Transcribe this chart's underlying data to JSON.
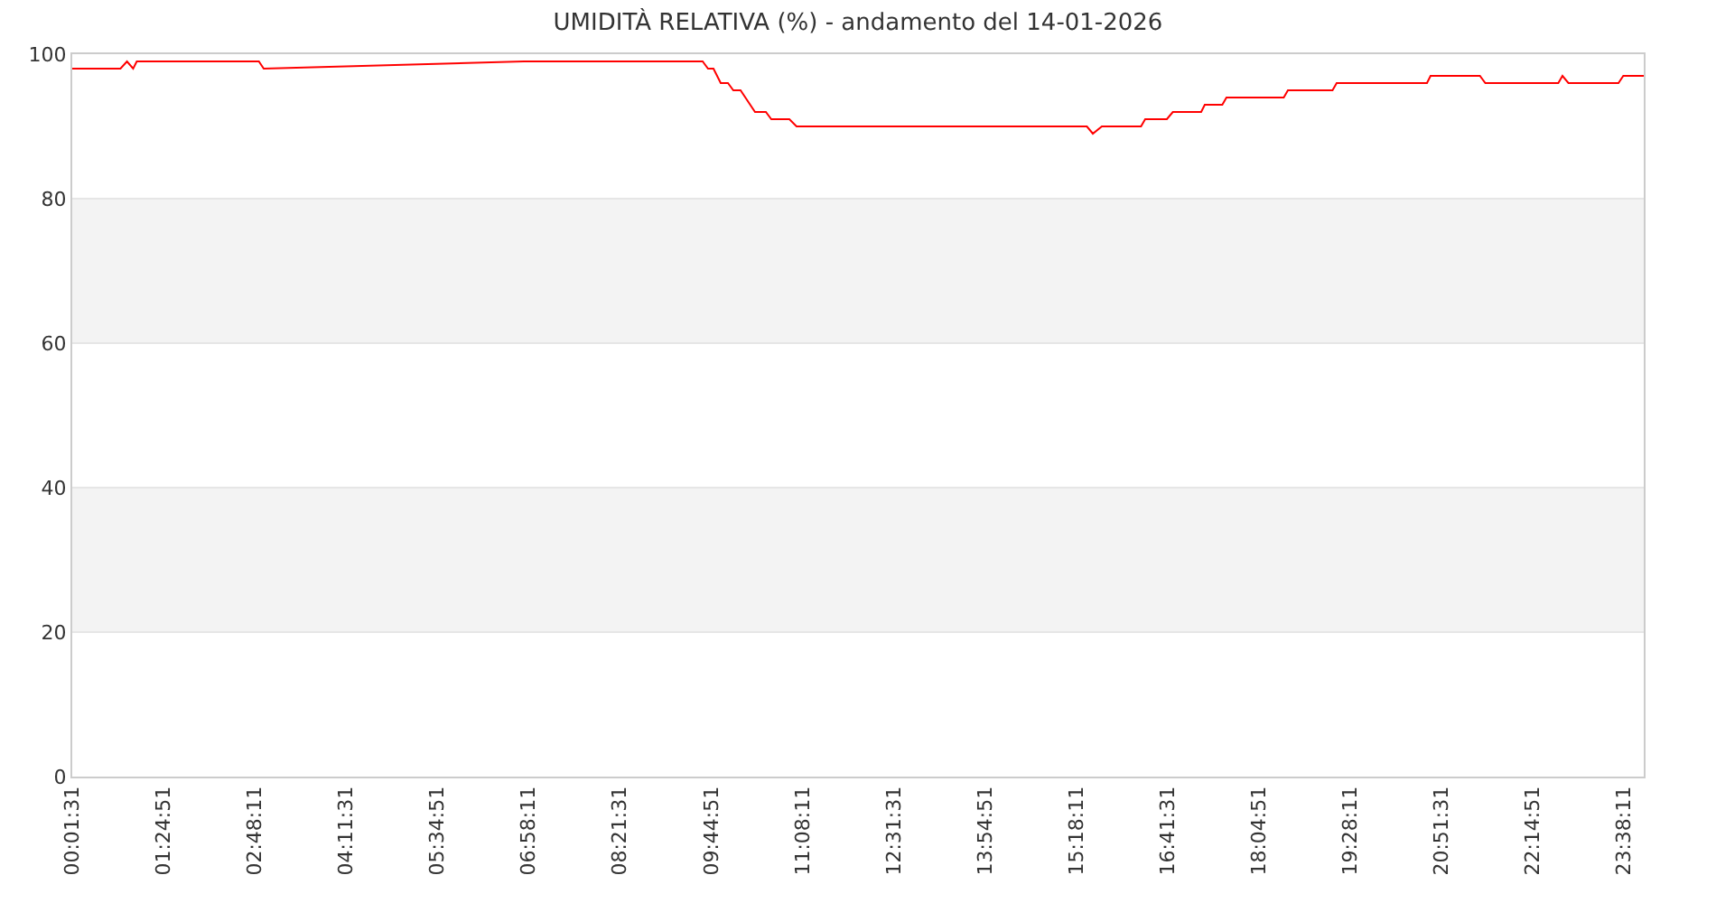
{
  "chart_data": {
    "type": "line",
    "title": "UMIDITÀ RELATIVA (%) - andamento del 14-01-2026",
    "series": [
      {
        "color": "#ff0000",
        "x": [
          0.025278,
          0.759,
          0.858,
          0.952,
          1.007,
          2.865,
          2.939,
          6.897,
          9.618,
          9.7,
          9.783,
          9.893,
          10.003,
          10.085,
          10.195,
          10.415,
          10.58,
          10.663,
          10.938,
          11.047,
          15.465,
          15.556,
          15.693,
          16.289,
          16.352,
          16.682,
          16.773,
          17.204,
          17.259,
          17.526,
          17.589,
          18.461,
          18.524,
          19.203,
          19.266,
          20.64,
          20.695,
          21.446,
          21.528,
          22.639,
          22.702,
          22.793,
          23.554,
          23.628,
          23.939
        ],
        "values": [
          98,
          98,
          99,
          98,
          99,
          99,
          98,
          99,
          99,
          98,
          98,
          96,
          96,
          95,
          95,
          92,
          92,
          91,
          91,
          90,
          90,
          89,
          90,
          90,
          91,
          91,
          92,
          92,
          93,
          93,
          94,
          94,
          95,
          95,
          96,
          96,
          97,
          97,
          96,
          96,
          97,
          96,
          96,
          97,
          97
        ]
      }
    ],
    "xlim": [
      0.025278,
      23.939
    ],
    "xticks": [
      {
        "value": 0.025278,
        "label": "00:01:31"
      },
      {
        "value": 1.414167,
        "label": "01:24:51"
      },
      {
        "value": 2.803056,
        "label": "02:48:11"
      },
      {
        "value": 4.191944,
        "label": "04:11:31"
      },
      {
        "value": 5.580833,
        "label": "05:34:51"
      },
      {
        "value": 6.969722,
        "label": "06:58:11"
      },
      {
        "value": 8.358611,
        "label": "08:21:31"
      },
      {
        "value": 9.7475,
        "label": "09:44:51"
      },
      {
        "value": 11.136389,
        "label": "11:08:11"
      },
      {
        "value": 12.525278,
        "label": "12:31:31"
      },
      {
        "value": 13.914167,
        "label": "13:54:51"
      },
      {
        "value": 15.303056,
        "label": "15:18:11"
      },
      {
        "value": 16.691944,
        "label": "16:41:31"
      },
      {
        "value": 18.080833,
        "label": "18:04:51"
      },
      {
        "value": 19.469722,
        "label": "19:28:11"
      },
      {
        "value": 20.858611,
        "label": "20:51:31"
      },
      {
        "value": 22.2475,
        "label": "22:14:51"
      },
      {
        "value": 23.636389,
        "label": "23:38:11"
      }
    ],
    "ylim": [
      0,
      100
    ],
    "yticks": [
      0,
      20,
      40,
      60,
      80,
      100
    ],
    "bands": [
      {
        "axis": "y",
        "from": 20,
        "to": 40,
        "color": "#f3f3f3"
      },
      {
        "axis": "y",
        "from": 60,
        "to": 80,
        "color": "#f3f3f3"
      }
    ],
    "grid": "y",
    "marker": "none",
    "line_style": "solid"
  }
}
